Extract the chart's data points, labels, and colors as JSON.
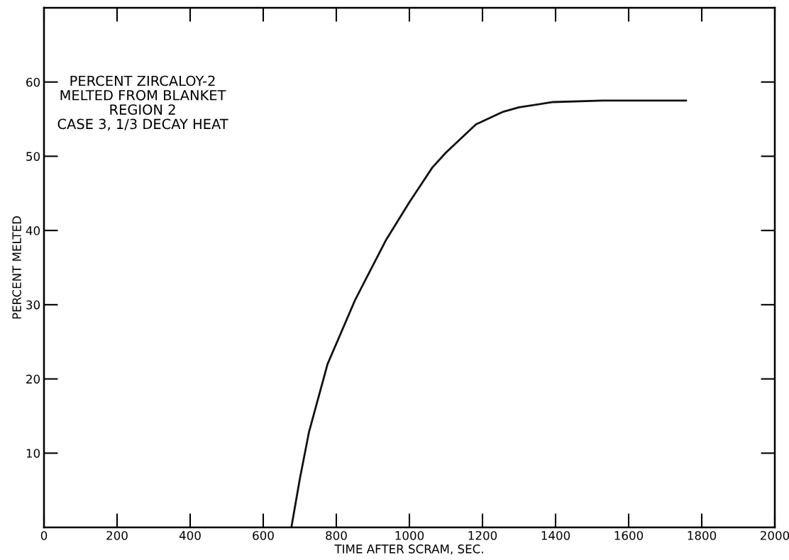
{
  "chart_data": {
    "type": "line",
    "xlabel": "TIME AFTER SCRAM, SEC.",
    "ylabel": "PERCENT MELTED",
    "annotations": [
      "PERCENT ZIRCALOY-2\nMELTED FROM BLANKET\nREGION 2\nCASE 3, 1/3 DECAY HEAT"
    ],
    "x": [
      677,
      700,
      725,
      776,
      852,
      937,
      1000,
      1063,
      1100,
      1182,
      1257,
      1300,
      1393,
      1528,
      1757
    ],
    "series": [
      {
        "color": "#111111",
        "values": [
          0,
          6.5,
          12.8,
          22.0,
          30.7,
          38.8,
          43.8,
          48.5,
          50.5,
          54.3,
          56.0,
          56.6,
          57.3,
          57.5,
          57.5
        ]
      }
    ],
    "xlim": [
      0,
      2000
    ],
    "ylim": [
      0,
      70
    ],
    "xticks": [
      0,
      200,
      400,
      600,
      800,
      1000,
      1200,
      1400,
      1600,
      1800,
      2000
    ],
    "yticks": [
      10,
      20,
      30,
      40,
      50,
      60
    ],
    "grid": false,
    "legend": false,
    "marker": "none",
    "line_style": "solid"
  }
}
